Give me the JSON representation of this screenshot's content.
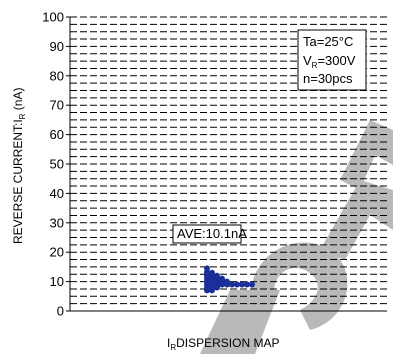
{
  "chart_data": {
    "type": "scatter",
    "xlabel": "DISPERSION MAP",
    "xlabel_prefix": "I",
    "xlabel_sub": "R",
    "ylabel_prefix": "REVERSE CURRENT:I",
    "ylabel_sub": "R",
    "ylabel_suffix": " (nA)",
    "ylim": [
      0,
      100
    ],
    "y_ticks": [
      0,
      10,
      20,
      30,
      40,
      50,
      60,
      70,
      80,
      90,
      100
    ],
    "grid": "dashed",
    "conditions": {
      "ta": "Ta=25°C",
      "vr_prefix": "V",
      "vr_sub": "R",
      "vr_suffix": "=300V",
      "n": "n=30pcs"
    },
    "average_label": "AVE:10.1nA",
    "points": [
      {
        "x": 0,
        "y": 14.5
      },
      {
        "x": 0,
        "y": 13.2
      },
      {
        "x": 0,
        "y": 12.0
      },
      {
        "x": 0,
        "y": 11.0
      },
      {
        "x": 0,
        "y": 10.0
      },
      {
        "x": 0,
        "y": 9.0
      },
      {
        "x": 0,
        "y": 8.0
      },
      {
        "x": 0,
        "y": 7.0
      },
      {
        "x": 1,
        "y": 13.0
      },
      {
        "x": 1,
        "y": 12.0
      },
      {
        "x": 1,
        "y": 11.0
      },
      {
        "x": 1,
        "y": 10.0
      },
      {
        "x": 1,
        "y": 9.0
      },
      {
        "x": 1,
        "y": 8.0
      },
      {
        "x": 1,
        "y": 7.0
      },
      {
        "x": 2,
        "y": 12.0
      },
      {
        "x": 2,
        "y": 11.0
      },
      {
        "x": 2,
        "y": 10.0
      },
      {
        "x": 2,
        "y": 9.0
      },
      {
        "x": 2,
        "y": 8.0
      },
      {
        "x": 3,
        "y": 11.0
      },
      {
        "x": 3,
        "y": 10.0
      },
      {
        "x": 3,
        "y": 9.0
      },
      {
        "x": 4,
        "y": 10.0
      },
      {
        "x": 4,
        "y": 9.0
      },
      {
        "x": 5,
        "y": 9.0
      },
      {
        "x": 6,
        "y": 9.0
      },
      {
        "x": 7,
        "y": 9.0
      },
      {
        "x": 8,
        "y": 9.0
      },
      {
        "x": 9,
        "y": 9.0
      }
    ],
    "colors": {
      "point": "#1a2f9a",
      "grid": "#000000",
      "watermark": "#000000"
    }
  }
}
